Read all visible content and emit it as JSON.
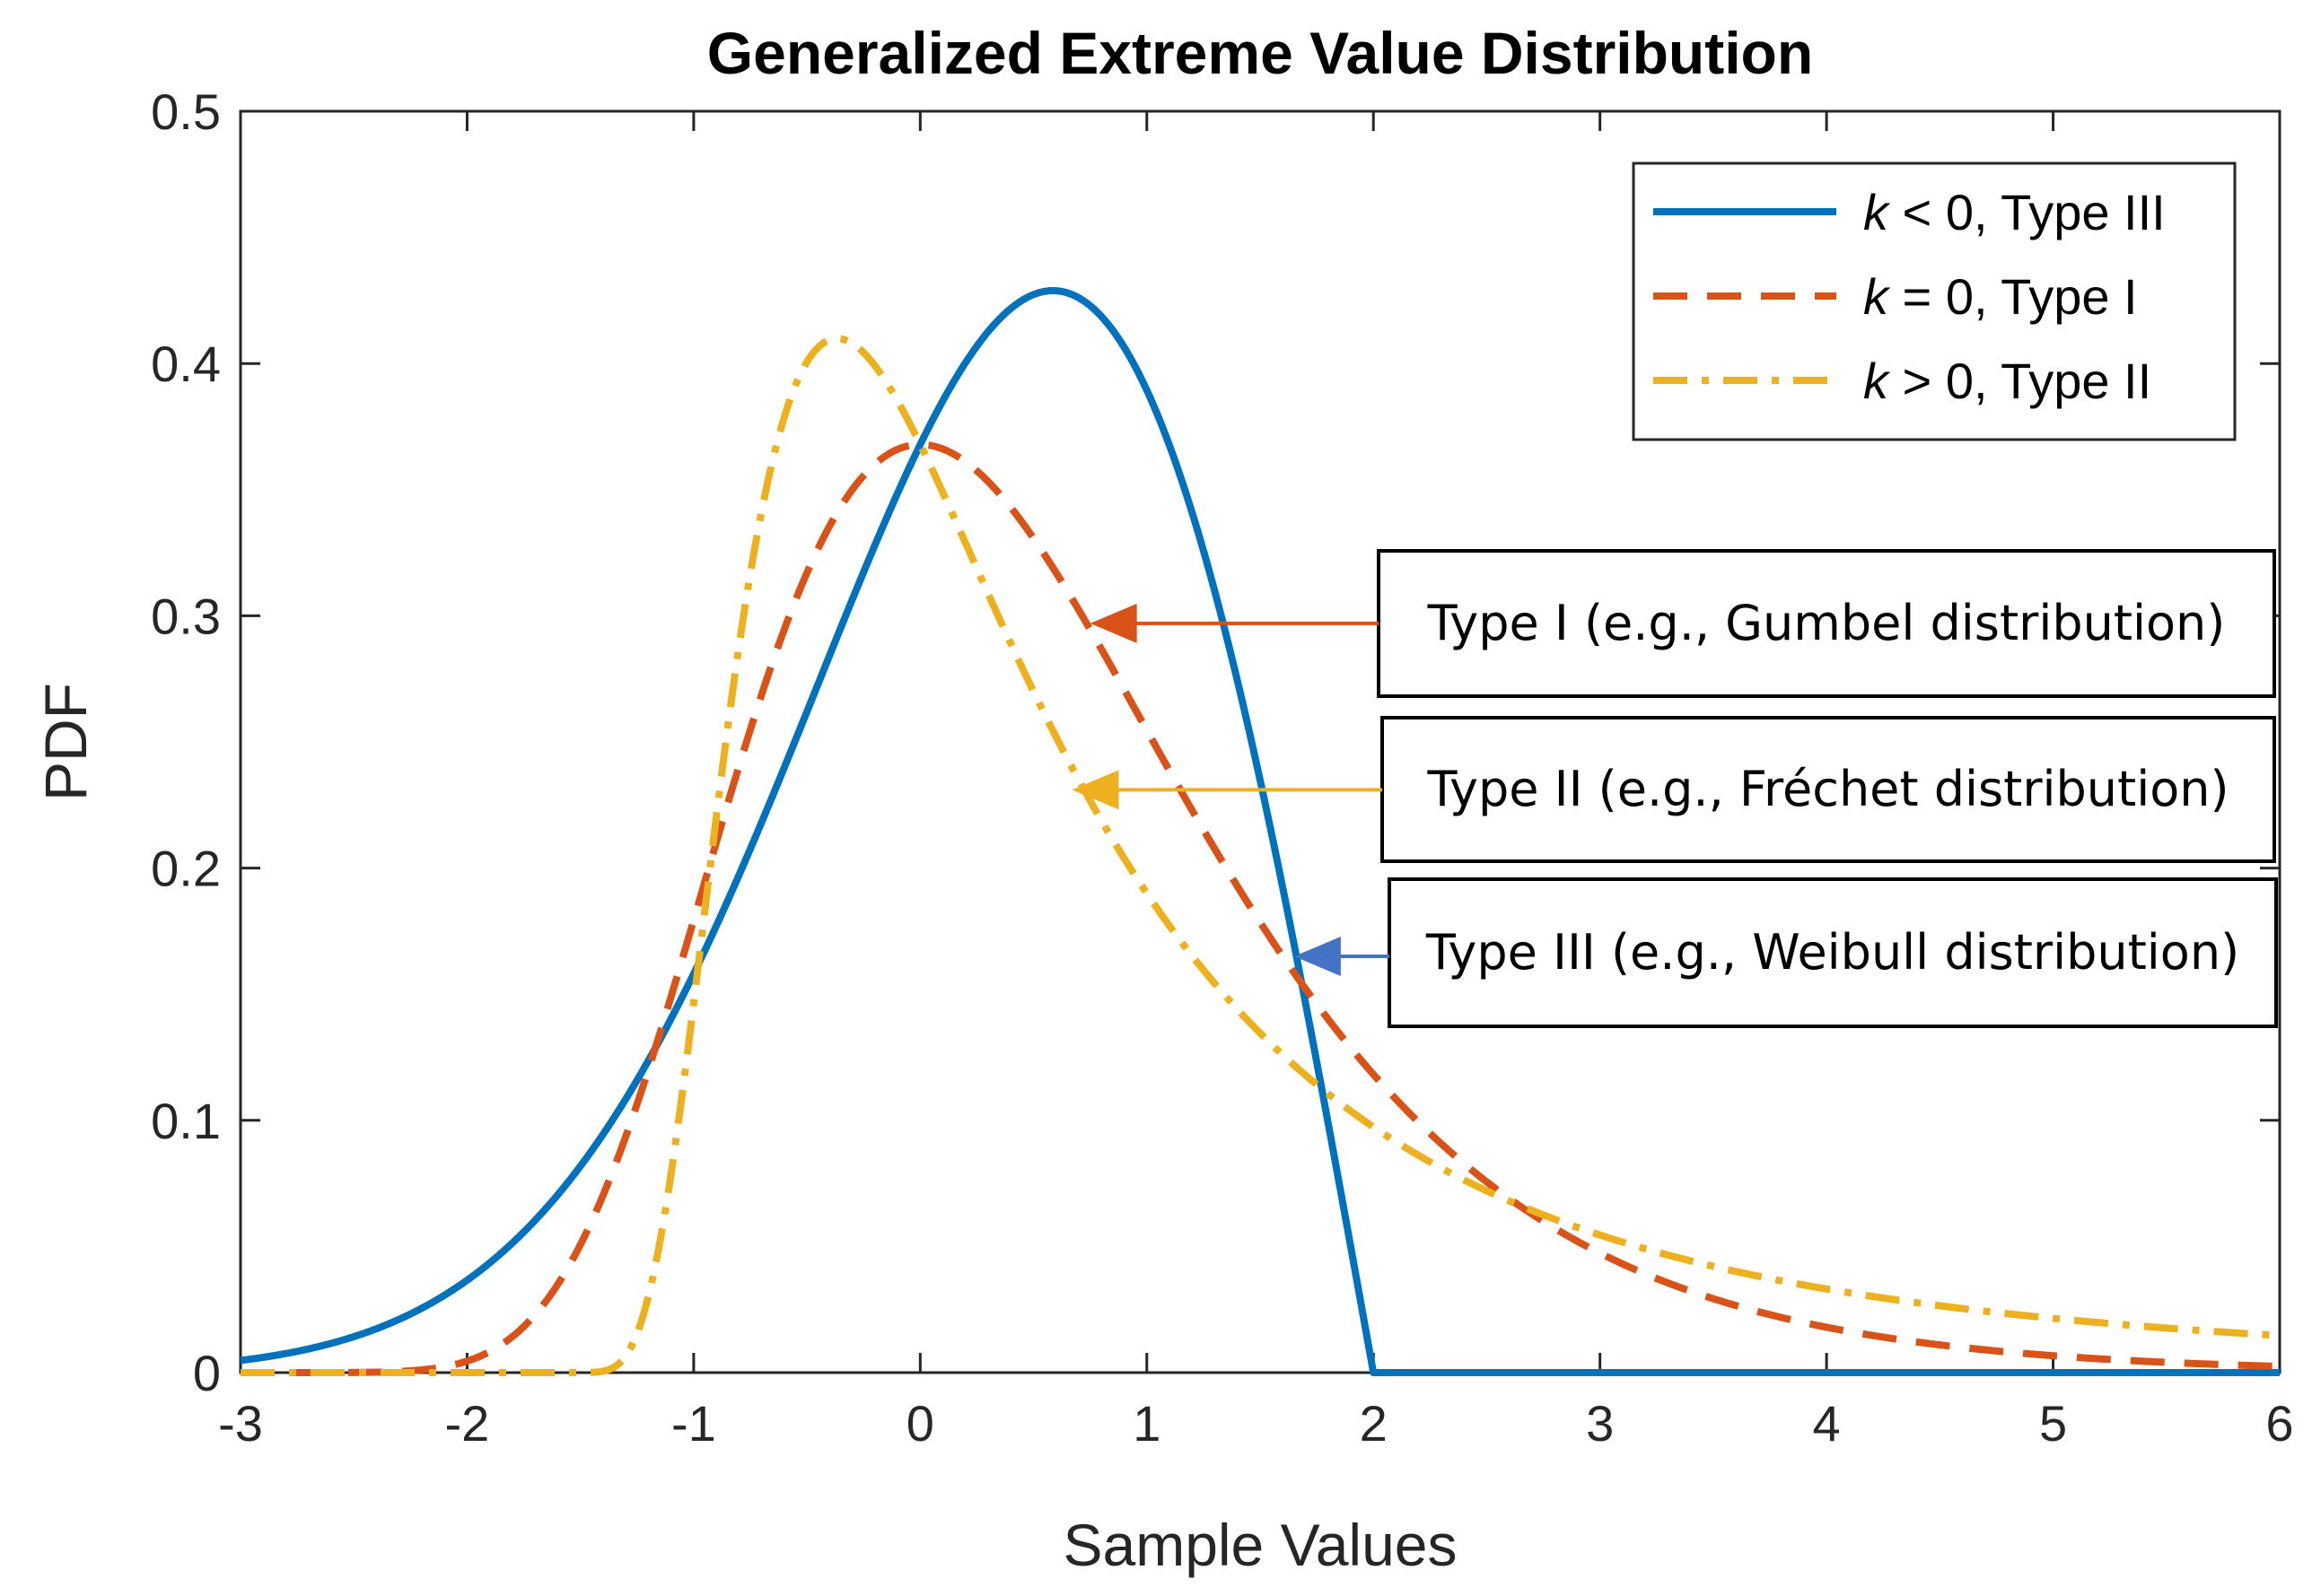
{
  "chart_data": {
    "type": "line",
    "title": "Generalized Extreme Value Distribution",
    "xlabel": "Sample Values",
    "ylabel": "PDF",
    "xlim": [
      -3,
      6
    ],
    "ylim": [
      0,
      0.5
    ],
    "xticks": [
      "-3",
      "-2",
      "-1",
      "0",
      "1",
      "2",
      "3",
      "4",
      "5",
      "6"
    ],
    "yticks": [
      "0",
      "0.1",
      "0.2",
      "0.3",
      "0.4",
      "0.5"
    ],
    "grid": false,
    "legend_position": "top-right",
    "series": [
      {
        "name": "k < 0, Type III",
        "k_symbol": "k",
        "label_rest": " < 0, Type III",
        "shape_k": -0.5,
        "color": "#0072BD",
        "style": "solid"
      },
      {
        "name": "k = 0, Type I",
        "k_symbol": "k",
        "label_rest": " = 0, Type I",
        "shape_k": 0,
        "color": "#D95319",
        "style": "dashed"
      },
      {
        "name": "k > 0, Type II",
        "k_symbol": "k",
        "label_rest": " > 0, Type II",
        "shape_k": 0.5,
        "color": "#EDB120",
        "style": "dashdot"
      }
    ],
    "annotations": [
      {
        "text": "Type I (e.g., Gumbel distribution)",
        "arrow_to": [
          0.75,
          0.297
        ],
        "color": "#D95319"
      },
      {
        "text": "Type II (e.g., Fréchet distribution)",
        "arrow_to": [
          0.67,
          0.231
        ],
        "color": "#EDB120"
      },
      {
        "text": "Type III (e.g., Weibull distribution)",
        "arrow_to": [
          1.65,
          0.165
        ],
        "color": "#4472C4"
      }
    ]
  }
}
